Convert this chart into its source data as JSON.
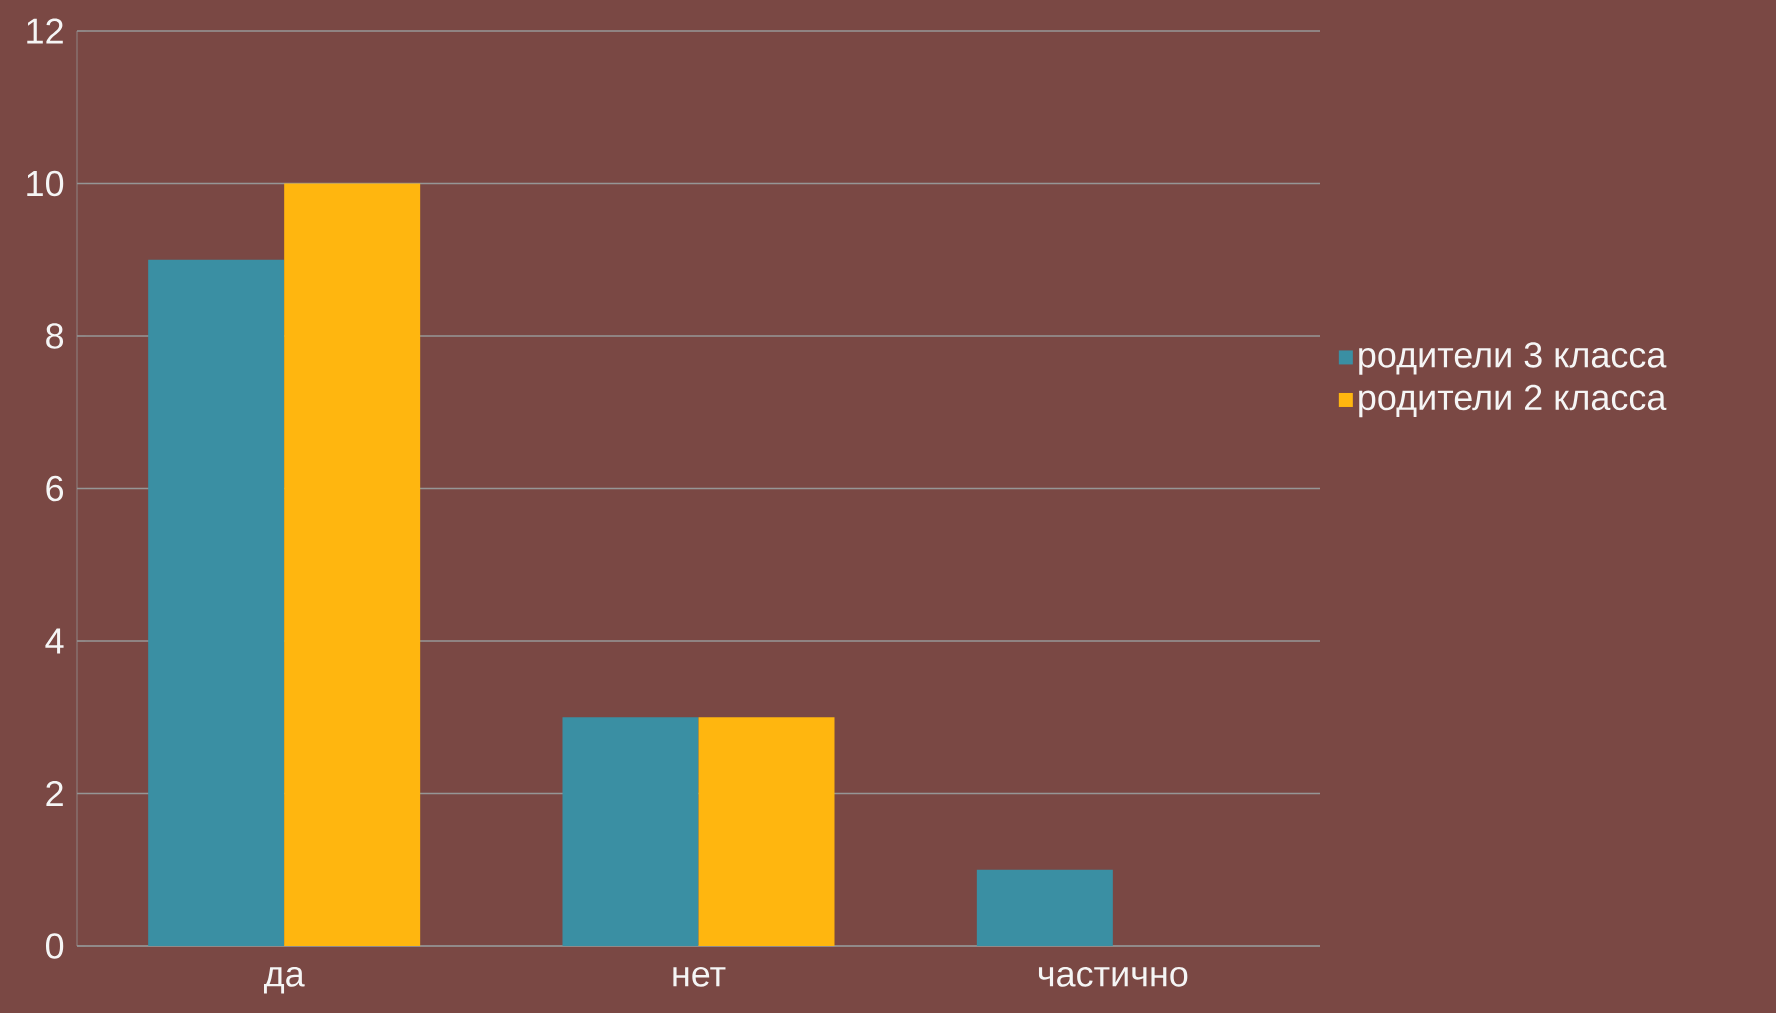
{
  "chart_data": {
    "type": "bar",
    "categories": [
      "да",
      "нет",
      "частично"
    ],
    "series": [
      {
        "name": "родители 3 класса",
        "color": "#3a8fa3",
        "values": [
          9,
          3,
          1
        ]
      },
      {
        "name": "родители 2 класса",
        "color": "#ffb60f",
        "values": [
          10,
          3,
          0
        ]
      }
    ],
    "ylim": [
      0,
      12
    ],
    "yticks": [
      0,
      2,
      4,
      6,
      8,
      10,
      12
    ],
    "grid": "y",
    "legend": "right"
  }
}
